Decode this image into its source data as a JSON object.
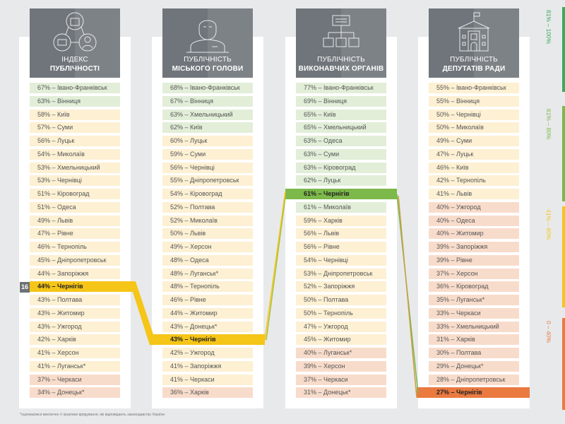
{
  "columns": [
    {
      "title_line1": "ІНДЕКС",
      "title_line2": "ПУБЛІЧНОСТІ",
      "icon": "network-icon",
      "highlight_index": 15,
      "rank_badge": "16",
      "highlight_color": "#f5c518",
      "rows": [
        "67% – Івано-Франківськ",
        "63% – Вінниця",
        "58% – Київ",
        "57% – Суми",
        "56% – Луцьк",
        "54% – Миколаїв",
        "53% – Хмельницький",
        "53% – Чернівці",
        "51% – Кіровоград",
        "51% – Одеса",
        "49% – Львів",
        "47% – Рівне",
        "46% – Тернопіль",
        "45% – Дніпропетровськ",
        "44% – Запоріжжя",
        "44% – Чернігів",
        "43% – Полтава",
        "43% – Житомир",
        "43% – Ужгород",
        "42% – Харків",
        "41% – Херсон",
        "41% – Луганськ*",
        "37% – Черкаси",
        "34% – Донецьк*"
      ]
    },
    {
      "title_line1": "ПУБЛІЧНІСТЬ",
      "title_line2": "МІСЬКОГО ГОЛОВИ",
      "icon": "mayor-icon",
      "highlight_index": 19,
      "highlight_color": "#f5c518",
      "rows": [
        "68% – Івано-Франківськ",
        "67% – Вінниця",
        "63% – Хмельницький",
        "62% – Київ",
        "60% – Луцьк",
        "59% – Суми",
        "56% – Чернівці",
        "55% – Дніпропетровськ",
        "54% – Кіровоград",
        "52% – Полтава",
        "52% – Миколаїв",
        "50% – Львів",
        "49% – Херсон",
        "48% – Одеса",
        "48% – Луганськ*",
        "48% – Тернопіль",
        "46% – Рівне",
        "44% – Житомир",
        "43% – Донецьк*",
        "43% – Чернігів",
        "42% – Ужгород",
        "41% – Запоріжжя",
        "41% – Черкаси",
        "36% – Харків"
      ]
    },
    {
      "title_line1": "ПУБЛІЧНІСТЬ",
      "title_line2": "ВИКОНАВЧИХ ОРГАНІВ",
      "icon": "org-chart-icon",
      "highlight_index": 8,
      "highlight_color": "#7cb84a",
      "rows": [
        "77% – Івано-Франківськ",
        "69% – Вінниця",
        "65% – Київ",
        "65% – Хмельницький",
        "63% – Одеса",
        "63% – Суми",
        "63% – Кіровоград",
        "62% – Луцьк",
        "61% – Чернігів",
        "61% – Миколаїв",
        "59% – Харків",
        "56% – Львів",
        "56% – Рівне",
        "54% – Чернівці",
        "53% – Дніпропетровськ",
        "52% – Запоріжжя",
        "50% – Полтава",
        "50% – Тернопіль",
        "47% – Ужгород",
        "45% – Житомир",
        "40% – Луганськ*",
        "39% – Херсон",
        "37% – Черкаси",
        "31% – Донецьк*"
      ]
    },
    {
      "title_line1": "ПУБЛІЧНІСТЬ",
      "title_line2": "ДЕПУТАТІВ РАДИ",
      "icon": "council-building-icon",
      "highlight_index": 23,
      "highlight_color": "#ea7a40",
      "rows": [
        "55% – Івано-Франківськ",
        "55% – Вінниця",
        "50% – Чернівці",
        "50% – Миколаїв",
        "49% – Суми",
        "47% – Луцьк",
        "46% – Київ",
        "42% – Тернопіль",
        "41% – Львів",
        "40% – Ужгород",
        "40% – Одеса",
        "40% – Житомир",
        "39% – Запоріжжя",
        "39% – Рівне",
        "37% – Херсон",
        "36% – Кіровоград",
        "35% – Луганськ*",
        "33% – Черкаси",
        "33% – Хмельницький",
        "31% – Харків",
        "30% – Полтава",
        "29% – Донецьк*",
        "28% – Дніпропетровськ",
        "27% – Чернігів"
      ]
    }
  ],
  "legend": [
    {
      "label": "81% – 100%",
      "color": "#3aaa5c"
    },
    {
      "label": "61% – 80%",
      "color": "#7cb84a"
    },
    {
      "label": "41% – 60%",
      "color": "#f5c518"
    },
    {
      "label": "0 – 40%",
      "color": "#ea7a40"
    }
  ],
  "footnote": "*оцінювалися виключно ті практики врядування, які відповідають законодавству України"
}
